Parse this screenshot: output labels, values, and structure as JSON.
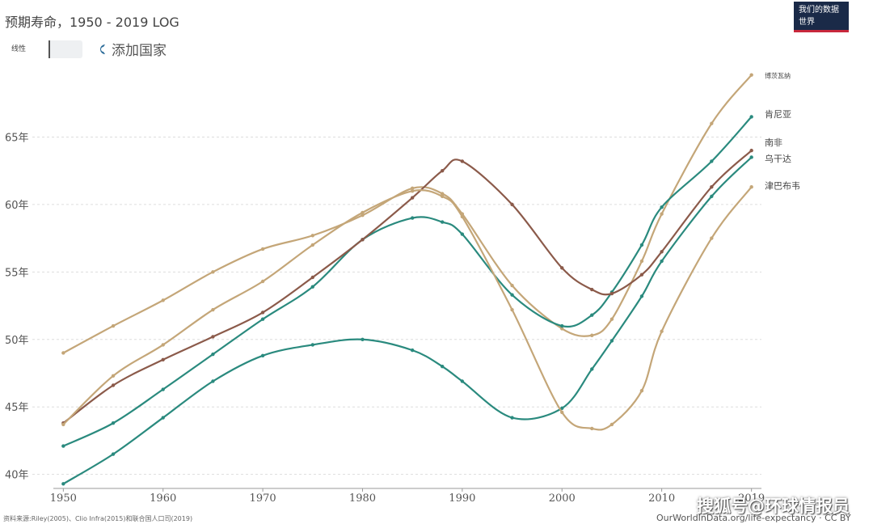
{
  "header": {
    "title": "预期寿命，1950 - 2019 LOG",
    "logo_text": "我们的数据世界",
    "scale_toggle": "线性",
    "add_country": "添加国家"
  },
  "footer": {
    "source": "资料来源:Riley(2005)、Clio Infra(2015)和联合国人口司(2019)",
    "credit": "OurWorldInData.org/life-expectancy · CC BY",
    "watermark": "搜狐号@环球情报员"
  },
  "colors": {
    "teal": "#2a8a7e",
    "tan": "#c4a678",
    "brown": "#8b5a4a"
  },
  "chart_data": {
    "type": "line",
    "xlabel": "",
    "ylabel": "",
    "xlim": [
      1949,
      2020
    ],
    "ylim": [
      39.2,
      70
    ],
    "x_ticks": [
      "1950",
      "1960",
      "1970",
      "1980",
      "1990",
      "2000",
      "2010",
      "2019"
    ],
    "y_ticks": [
      "40年",
      "45年",
      "50年",
      "55年",
      "60年",
      "65年"
    ],
    "y_tick_values": [
      40,
      45,
      50,
      55,
      60,
      65
    ],
    "x": [
      1950,
      1955,
      1960,
      1965,
      1970,
      1975,
      1980,
      1985,
      1988,
      1990,
      1995,
      2000,
      2003,
      2005,
      2008,
      2010,
      2015,
      2019
    ],
    "series": [
      {
        "name": "博茨瓦纳",
        "color": "#c4a678",
        "values": [
          49.0,
          51.0,
          52.9,
          55.0,
          56.7,
          57.7,
          59.2,
          61.2,
          60.8,
          59.3,
          54.0,
          50.8,
          50.3,
          51.5,
          55.8,
          59.3,
          66.0,
          69.6
        ]
      },
      {
        "name": "肯尼亚",
        "color": "#2a8a7e",
        "values": [
          42.1,
          43.8,
          46.3,
          48.9,
          51.5,
          53.9,
          57.4,
          59.0,
          58.7,
          57.8,
          53.3,
          51.0,
          51.8,
          53.5,
          57.0,
          59.8,
          63.2,
          66.5
        ]
      },
      {
        "name": "南非",
        "color": "#8b5a4a",
        "values": [
          43.8,
          46.6,
          48.5,
          50.2,
          52.0,
          54.6,
          57.4,
          60.5,
          62.5,
          63.2,
          60.0,
          55.3,
          53.7,
          53.4,
          54.8,
          56.5,
          61.3,
          64.0
        ]
      },
      {
        "name": "乌干达",
        "color": "#2a8a7e",
        "values": [
          39.3,
          41.5,
          44.2,
          46.9,
          48.8,
          49.6,
          50.0,
          49.2,
          48.0,
          46.9,
          44.2,
          44.9,
          47.8,
          49.9,
          53.2,
          55.8,
          60.6,
          63.5
        ]
      },
      {
        "name": "津巴布韦",
        "color": "#c4a678",
        "values": [
          43.7,
          47.3,
          49.6,
          52.2,
          54.3,
          57.0,
          59.4,
          61.0,
          60.6,
          59.1,
          52.2,
          44.6,
          43.4,
          43.7,
          46.2,
          50.6,
          57.5,
          61.3
        ]
      }
    ]
  }
}
